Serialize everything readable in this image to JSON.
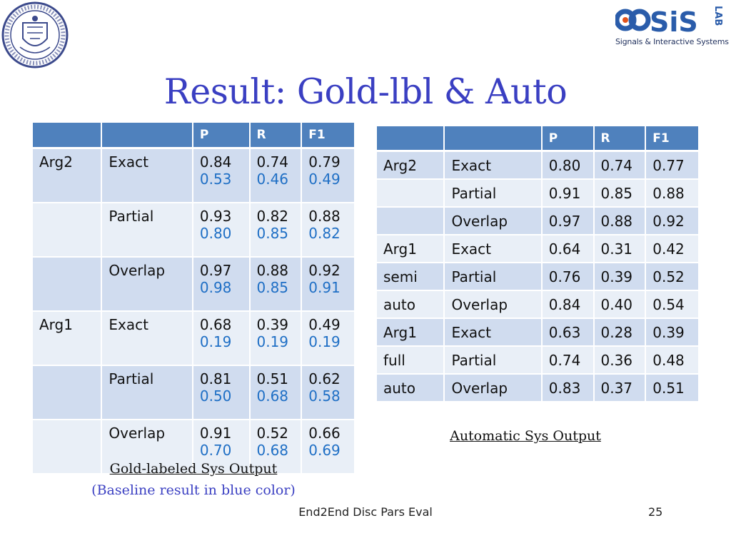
{
  "slide": {
    "title": "Result: Gold-lbl & Auto",
    "footer": "End2End Disc Pars Eval",
    "page_number": "25"
  },
  "logo": {
    "letters": "SiS",
    "sub": "LAB",
    "caption": "Signals & Interactive Systems"
  },
  "gold_table": {
    "headers": [
      "",
      "",
      "P",
      "R",
      "F1"
    ],
    "rows": [
      {
        "arg": "Arg2",
        "match": "Exact",
        "p": "0.84",
        "r": "0.74",
        "f1": "0.79",
        "bp": "0.53",
        "br": "0.46",
        "bf1": "0.49"
      },
      {
        "arg": "",
        "match": "Partial",
        "p": "0.93",
        "r": "0.82",
        "f1": "0.88",
        "bp": "0.80",
        "br": "0.85",
        "bf1": "0.82"
      },
      {
        "arg": "",
        "match": "Overlap",
        "p": "0.97",
        "r": "0.88",
        "f1": "0.92",
        "bp": "0.98",
        "br": "0.85",
        "bf1": "0.91"
      },
      {
        "arg": "Arg1",
        "match": "Exact",
        "p": "0.68",
        "r": "0.39",
        "f1": "0.49",
        "bp": "0.19",
        "br": "0.19",
        "bf1": "0.19"
      },
      {
        "arg": "",
        "match": "Partial",
        "p": "0.81",
        "r": "0.51",
        "f1": "0.62",
        "bp": "0.50",
        "br": "0.68",
        "bf1": "0.58"
      },
      {
        "arg": "",
        "match": "Overlap",
        "p": "0.91",
        "r": "0.52",
        "f1": "0.66",
        "bp": "0.70",
        "br": "0.68",
        "bf1": "0.69"
      }
    ],
    "caption": "Gold-labeled Sys Output",
    "note": "(Baseline result in blue color)"
  },
  "auto_table": {
    "headers": [
      "",
      "",
      "P",
      "R",
      "F1"
    ],
    "rows": [
      {
        "arg": "Arg2",
        "match": "Exact",
        "p": "0.80",
        "r": "0.74",
        "f1": "0.77"
      },
      {
        "arg": "",
        "match": "Partial",
        "p": "0.91",
        "r": "0.85",
        "f1": "0.88"
      },
      {
        "arg": "",
        "match": "Overlap",
        "p": "0.97",
        "r": "0.88",
        "f1": "0.92"
      },
      {
        "arg": "Arg1",
        "match": "Exact",
        "p": "0.64",
        "r": "0.31",
        "f1": "0.42"
      },
      {
        "arg": "semi",
        "match": "Partial",
        "p": "0.76",
        "r": "0.39",
        "f1": "0.52"
      },
      {
        "arg": "auto",
        "match": "Overlap",
        "p": "0.84",
        "r": "0.40",
        "f1": "0.54"
      },
      {
        "arg": "Arg1",
        "match": "Exact",
        "p": "0.63",
        "r": "0.28",
        "f1": "0.39"
      },
      {
        "arg": "full",
        "match": "Partial",
        "p": "0.74",
        "r": "0.36",
        "f1": "0.48"
      },
      {
        "arg": "auto",
        "match": "Overlap",
        "p": "0.83",
        "r": "0.37",
        "f1": "0.51"
      }
    ],
    "caption": "Automatic Sys Output"
  },
  "colors": {
    "title": "#3a3fc2",
    "header": "#4f81bd",
    "row_dark": "#d0dcef",
    "row_light": "#e9eff7",
    "baseline": "#1f6fc5"
  },
  "icons": {
    "seal": "university-seal-icon",
    "logo": "sis-lab-logo-icon"
  }
}
